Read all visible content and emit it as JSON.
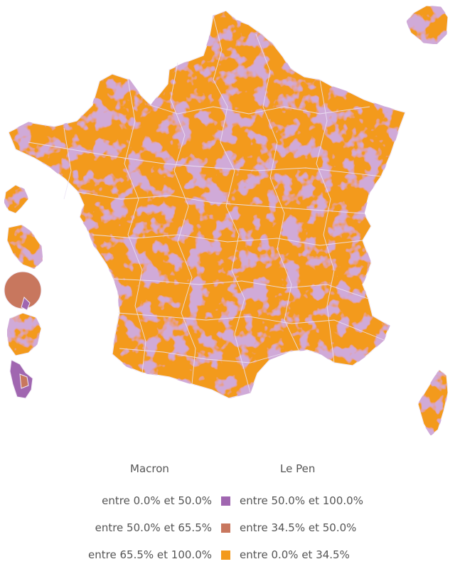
{
  "colors": {
    "purple": "#a066b0",
    "brown": "#c8775e",
    "orange": "#f39a1c",
    "border": "#e8e0f0"
  },
  "legend": {
    "header_left": "Macron",
    "header_right": "Le Pen",
    "rows": [
      {
        "left": "entre 0.0% et 50.0%",
        "right": "entre 50.0% et 100.0%",
        "color_key": "purple"
      },
      {
        "left": "entre 50.0% et 65.5%",
        "right": "entre 34.5% et 50.0%",
        "color_key": "brown"
      },
      {
        "left": "entre 65.5% et 100.0%",
        "right": "entre 0.0% et 34.5%",
        "color_key": "orange"
      }
    ]
  }
}
